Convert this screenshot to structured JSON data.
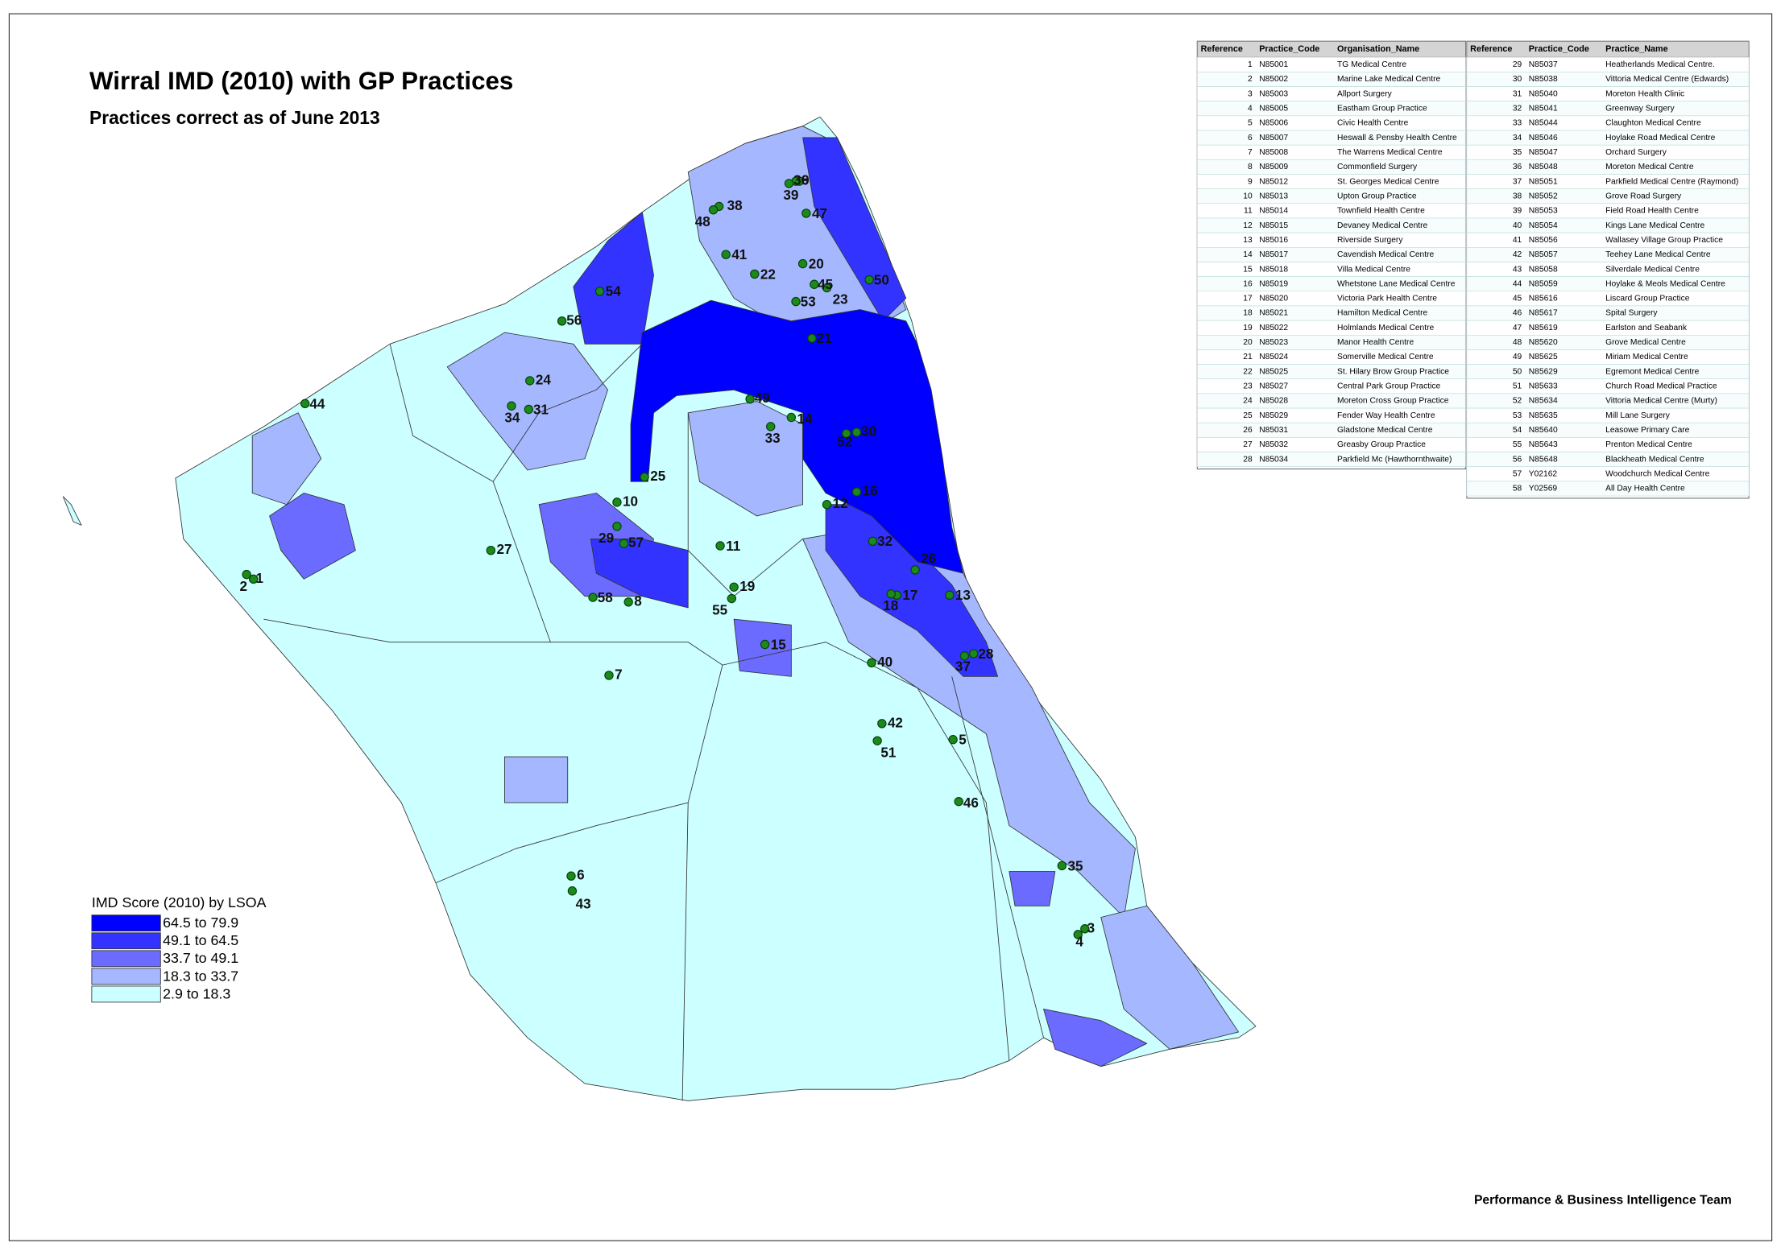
{
  "header": {
    "title": "Wirral IMD (2010) with GP Practices",
    "subtitle": "Practices correct as of June 2013"
  },
  "legend": {
    "title": "IMD Score (2010) by LSOA",
    "items": [
      {
        "label": "64.5 to 79.9",
        "color": "#0000ff"
      },
      {
        "label": "49.1 to 64.5",
        "color": "#3333ff"
      },
      {
        "label": "33.7 to 49.1",
        "color": "#6b6bff"
      },
      {
        "label": "18.3 to 33.7",
        "color": "#a5b8ff"
      },
      {
        "label": "2.9 to 18.3",
        "color": "#ccffff"
      }
    ]
  },
  "tables": [
    {
      "columns": [
        "Reference",
        "Practice_Code",
        "Organisation_Name"
      ],
      "rows": [
        [
          1,
          "N85001",
          "TG Medical Centre"
        ],
        [
          2,
          "N85002",
          "Marine Lake Medical Centre"
        ],
        [
          3,
          "N85003",
          "Allport Surgery"
        ],
        [
          4,
          "N85005",
          "Eastham Group Practice"
        ],
        [
          5,
          "N85006",
          "Civic Health Centre"
        ],
        [
          6,
          "N85007",
          "Heswall & Pensby Health Centre"
        ],
        [
          7,
          "N85008",
          "The Warrens Medical Centre"
        ],
        [
          8,
          "N85009",
          "Commonfield Surgery"
        ],
        [
          9,
          "N85012",
          "St. Georges Medical Centre"
        ],
        [
          10,
          "N85013",
          "Upton Group Practice"
        ],
        [
          11,
          "N85014",
          "Townfield Health Centre"
        ],
        [
          12,
          "N85015",
          "Devaney Medical Centre"
        ],
        [
          13,
          "N85016",
          "Riverside Surgery"
        ],
        [
          14,
          "N85017",
          "Cavendish Medical Centre"
        ],
        [
          15,
          "N85018",
          "Villa Medical Centre"
        ],
        [
          16,
          "N85019",
          "Whetstone Lane Medical Centre"
        ],
        [
          17,
          "N85020",
          "Victoria Park Health Centre"
        ],
        [
          18,
          "N85021",
          "Hamilton Medical Centre"
        ],
        [
          19,
          "N85022",
          "Holmlands Medical Centre"
        ],
        [
          20,
          "N85023",
          "Manor Health Centre"
        ],
        [
          21,
          "N85024",
          "Somerville Medical Centre"
        ],
        [
          22,
          "N85025",
          "St. Hilary Brow Group Practice"
        ],
        [
          23,
          "N85027",
          "Central Park Group Practice"
        ],
        [
          24,
          "N85028",
          "Moreton Cross Group Practice"
        ],
        [
          25,
          "N85029",
          "Fender Way Health Centre"
        ],
        [
          26,
          "N85031",
          "Gladstone Medical Centre"
        ],
        [
          27,
          "N85032",
          "Greasby Group Practice"
        ],
        [
          28,
          "N85034",
          "Parkfield Mc (Hawthornthwaite)"
        ]
      ]
    },
    {
      "columns": [
        "Reference",
        "Practice_Code",
        "Practice_Name"
      ],
      "rows": [
        [
          29,
          "N85037",
          "Heatherlands Medical Centre."
        ],
        [
          30,
          "N85038",
          "Vittoria Medical Centre (Edwards)"
        ],
        [
          31,
          "N85040",
          "Moreton Health Clinic"
        ],
        [
          32,
          "N85041",
          "Greenway Surgery"
        ],
        [
          33,
          "N85044",
          "Claughton Medical Centre"
        ],
        [
          34,
          "N85046",
          "Hoylake Road Medical Centre"
        ],
        [
          35,
          "N85047",
          "Orchard Surgery"
        ],
        [
          36,
          "N85048",
          "Moreton Medical Centre"
        ],
        [
          37,
          "N85051",
          "Parkfield Medical Centre (Raymond)"
        ],
        [
          38,
          "N85052",
          "Grove Road Surgery"
        ],
        [
          39,
          "N85053",
          "Field Road Health Centre"
        ],
        [
          40,
          "N85054",
          "Kings Lane Medical Centre"
        ],
        [
          41,
          "N85056",
          "Wallasey Village Group Practice"
        ],
        [
          42,
          "N85057",
          "Teehey Lane Medical Centre"
        ],
        [
          43,
          "N85058",
          "Silverdale Medical Centre"
        ],
        [
          44,
          "N85059",
          "Hoylake & Meols Medical Centre"
        ],
        [
          45,
          "N85616",
          "Liscard Group Practice"
        ],
        [
          46,
          "N85617",
          "Spital Surgery"
        ],
        [
          47,
          "N85619",
          "Earlston and Seabank"
        ],
        [
          48,
          "N85620",
          "Grove Medical Centre"
        ],
        [
          49,
          "N85625",
          "Miriam Medical Centre"
        ],
        [
          50,
          "N85629",
          "Egremont Medical Centre"
        ],
        [
          51,
          "N85633",
          "Church Road Medical Practice"
        ],
        [
          52,
          "N85634",
          "Vittoria Medical Centre (Murty)"
        ],
        [
          53,
          "N85635",
          "Mill Lane Surgery"
        ],
        [
          54,
          "N85640",
          "Leasowe Primary Care"
        ],
        [
          55,
          "N85643",
          "Prenton Medical Centre"
        ],
        [
          56,
          "N85648",
          "Blackheath Medical Centre"
        ],
        [
          57,
          "Y02162",
          "Woodchurch Medical Centre"
        ],
        [
          58,
          "Y02569",
          "All Day Health Centre"
        ]
      ]
    }
  ],
  "footer": "Performance & Business Intelligence Team"
}
